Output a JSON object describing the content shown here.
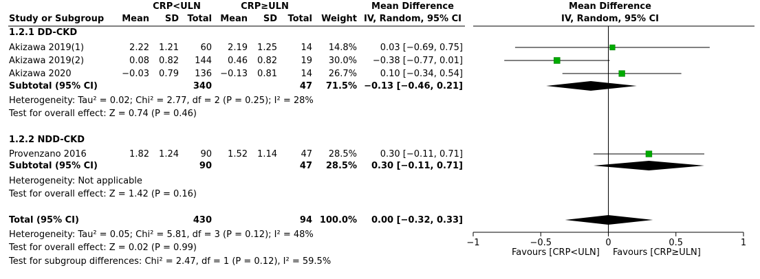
{
  "header": {
    "group1": "CRP<ULN",
    "group2": "CRP≥ULN",
    "effect_title": "Mean Difference",
    "effect_sub": "IV, Random, 95% CI",
    "plot_title": "Mean Difference",
    "plot_sub": "IV, Random, 95% CI",
    "col_study": "Study or Subgroup",
    "col_mean": "Mean",
    "col_sd": "SD",
    "col_total": "Total",
    "col_weight": "Weight"
  },
  "subgroups": [
    {
      "title": "1.2.1 DD-CKD",
      "studies": [
        {
          "name": "Akizawa 2019(1)",
          "m1": "2.22",
          "sd1": "1.21",
          "n1": "60",
          "m2": "2.19",
          "sd2": "1.25",
          "n2": "14",
          "weight": "14.8%",
          "ci": "0.03 [−0.69, 0.75]"
        },
        {
          "name": "Akizawa 2019(2)",
          "m1": "0.08",
          "sd1": "0.82",
          "n1": "144",
          "m2": "0.46",
          "sd2": "0.82",
          "n2": "19",
          "weight": "30.0%",
          "ci": "−0.38 [−0.77, 0.01]"
        },
        {
          "name": "Akizawa 2020",
          "m1": "−0.03",
          "sd1": "0.79",
          "n1": "136",
          "m2": "−0.13",
          "sd2": "0.81",
          "n2": "14",
          "weight": "26.7%",
          "ci": "0.10 [−0.34, 0.54]"
        }
      ],
      "subtotal": {
        "label": "Subtotal (95% CI)",
        "n1": "340",
        "n2": "47",
        "weight": "71.5%",
        "ci": "−0.13 [−0.46, 0.21]"
      },
      "heterogeneity": "Heterogeneity: Tau² = 0.02; Chi² = 2.77, df = 2 (P = 0.25); I² = 28%",
      "overall": "Test for overall effect: Z = 0.74 (P = 0.46)"
    },
    {
      "title": "1.2.2 NDD-CKD",
      "studies": [
        {
          "name": "Provenzano 2016",
          "m1": "1.82",
          "sd1": "1.24",
          "n1": "90",
          "m2": "1.52",
          "sd2": "1.14",
          "n2": "47",
          "weight": "28.5%",
          "ci": "0.30 [−0.11, 0.71]"
        }
      ],
      "subtotal": {
        "label": "Subtotal (95% CI)",
        "n1": "90",
        "n2": "47",
        "weight": "28.5%",
        "ci": "0.30 [−0.11, 0.71]"
      },
      "heterogeneity": "Heterogeneity: Not applicable",
      "overall": "Test for overall effect: Z = 1.42 (P = 0.16)"
    }
  ],
  "total": {
    "label": "Total (95% CI)",
    "n1": "430",
    "n2": "94",
    "weight": "100.0%",
    "ci": "0.00 [−0.32, 0.33]"
  },
  "footer": {
    "heterogeneity": "Heterogeneity: Tau² = 0.05; Chi² = 5.81, df = 3 (P = 0.12); I² = 48%",
    "overall": "Test for overall effect: Z = 0.02 (P = 0.99)",
    "subgroup_diff": "Test for subgroup differences: Chi² = 2.47, df = 1 (P = 0.12), I² = 59.5%"
  },
  "axis": {
    "favours_left": "Favours [CRP<ULN]",
    "favours_right": "Favours [CRP≥ULN]"
  },
  "colors": {
    "marker": "#00aa00",
    "diamond": "#000000",
    "line": "#000000"
  },
  "chart_data": {
    "type": "forest",
    "xlim": [
      -1,
      1
    ],
    "ticks": [
      -1,
      -0.5,
      0,
      0.5,
      1
    ],
    "tick_labels": [
      "−1",
      "−0.5",
      "0",
      "0.5",
      "1"
    ],
    "studies": [
      {
        "name": "Akizawa 2019(1)",
        "md": 0.03,
        "lo": -0.69,
        "hi": 0.75,
        "weight": 14.8
      },
      {
        "name": "Akizawa 2019(2)",
        "md": -0.38,
        "lo": -0.77,
        "hi": 0.01,
        "weight": 30.0
      },
      {
        "name": "Akizawa 2020",
        "md": 0.1,
        "lo": -0.34,
        "hi": 0.54,
        "weight": 26.7
      },
      {
        "name": "Provenzano 2016",
        "md": 0.3,
        "lo": -0.11,
        "hi": 0.71,
        "weight": 28.5
      }
    ],
    "diamonds": [
      {
        "name": "Subtotal DD-CKD",
        "md": -0.13,
        "lo": -0.46,
        "hi": 0.21
      },
      {
        "name": "Subtotal NDD-CKD",
        "md": 0.3,
        "lo": -0.11,
        "hi": 0.71
      },
      {
        "name": "Total",
        "md": 0.0,
        "lo": -0.32,
        "hi": 0.33
      }
    ]
  }
}
